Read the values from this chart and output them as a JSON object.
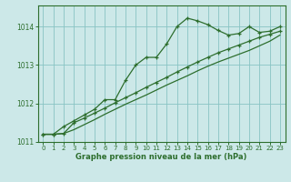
{
  "xlabel": "Graphe pression niveau de la mer (hPa)",
  "background_color": "#cce8e8",
  "grid_color": "#88c4c4",
  "line_color": "#2d6e2d",
  "line1": [
    1011.2,
    1011.2,
    1011.4,
    1011.55,
    1011.7,
    1011.85,
    1012.1,
    1012.1,
    1012.6,
    1013.0,
    1013.2,
    1013.2,
    1013.55,
    1014.0,
    1014.22,
    1014.15,
    1014.05,
    1013.9,
    1013.78,
    1013.82,
    1014.0,
    1013.85,
    1013.88,
    1014.0
  ],
  "line2": [
    1011.2,
    1011.2,
    1011.22,
    1011.5,
    1011.62,
    1011.75,
    1011.88,
    1012.02,
    1012.15,
    1012.28,
    1012.42,
    1012.55,
    1012.68,
    1012.82,
    1012.95,
    1013.08,
    1013.2,
    1013.32,
    1013.42,
    1013.52,
    1013.62,
    1013.72,
    1013.8,
    1013.88
  ],
  "line3": [
    1011.2,
    1011.2,
    1011.22,
    1011.32,
    1011.45,
    1011.58,
    1011.72,
    1011.85,
    1011.98,
    1012.1,
    1012.22,
    1012.35,
    1012.48,
    1012.6,
    1012.72,
    1012.85,
    1012.97,
    1013.08,
    1013.18,
    1013.28,
    1013.38,
    1013.5,
    1013.62,
    1013.78
  ],
  "xlim": [
    -0.5,
    23.5
  ],
  "ylim": [
    1011.0,
    1014.55
  ],
  "yticks": [
    1011,
    1012,
    1013,
    1014
  ],
  "xticks": [
    0,
    1,
    2,
    3,
    4,
    5,
    6,
    7,
    8,
    9,
    10,
    11,
    12,
    13,
    14,
    15,
    16,
    17,
    18,
    19,
    20,
    21,
    22,
    23
  ],
  "figsize": [
    3.2,
    2.0
  ],
  "dpi": 100
}
